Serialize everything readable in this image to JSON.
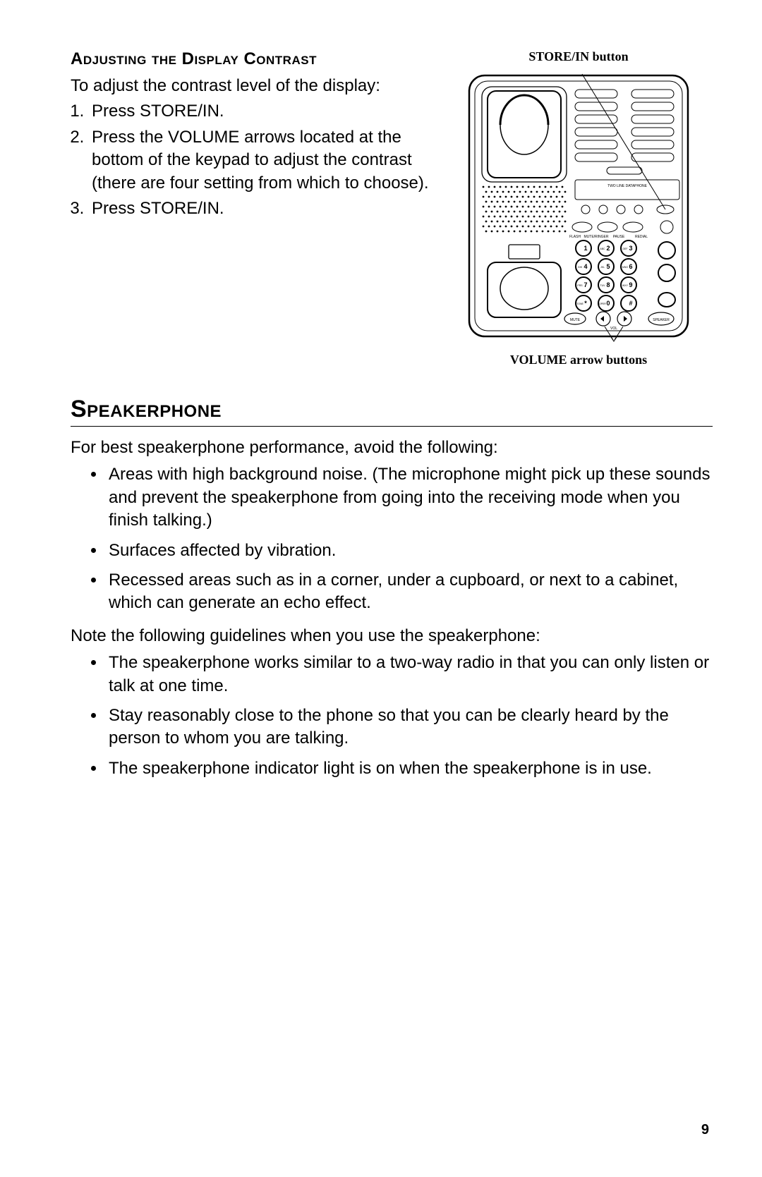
{
  "page_number": "9",
  "callouts": {
    "top": "STORE/IN button",
    "bottom": "VOLUME arrow buttons"
  },
  "section1": {
    "heading": "Adjusting the Display Contrast",
    "intro": "To adjust the contrast level of the display:",
    "steps": [
      "Press STORE/IN.",
      "Press the VOLUME arrows located at the bottom of the keypad to adjust the contrast (there are four setting from which to choose).",
      "Press STORE/IN."
    ]
  },
  "section2": {
    "heading": "Speakerphone",
    "intro1": "For best speakerphone performance, avoid the following:",
    "bullets1": [
      "Areas with high background noise. (The microphone might pick up these sounds and prevent the speakerphone from going into the receiving mode when you finish talking.)",
      "Surfaces affected by vibration.",
      "Recessed areas such as in a corner, under a cupboard, or next to a cabinet, which can generate an echo effect."
    ],
    "intro2": "Note the following guidelines when you use the speakerphone:",
    "bullets2": [
      "The speakerphone works similar to a two-way radio in that you can only listen or talk at one time.",
      "Stay reasonably close to the phone so that you can be clearly heard by the person to whom you are talking.",
      "The speakerphone indicator light is on when the speakerphone is in use."
    ]
  },
  "keypad": {
    "rows": [
      [
        {
          "t": "1"
        },
        {
          "t": "2",
          "s": "ABC"
        },
        {
          "t": "3",
          "s": "DEF"
        }
      ],
      [
        {
          "t": "4",
          "s": "GHI"
        },
        {
          "t": "5",
          "s": "JKL"
        },
        {
          "t": "6",
          "s": "MNO"
        }
      ],
      [
        {
          "t": "7",
          "s": "PRS"
        },
        {
          "t": "8",
          "s": "TUV"
        },
        {
          "t": "9",
          "s": "WXY"
        }
      ],
      [
        {
          "t": "*",
          "s": "TONE"
        },
        {
          "t": "0",
          "s": "OPER"
        },
        {
          "t": "#"
        }
      ]
    ],
    "display_label": "TWO LINE DATAPHONE",
    "labels": [
      "FLASH",
      "MUTE/RINGER",
      "PAUSE",
      "REDIAL"
    ]
  }
}
